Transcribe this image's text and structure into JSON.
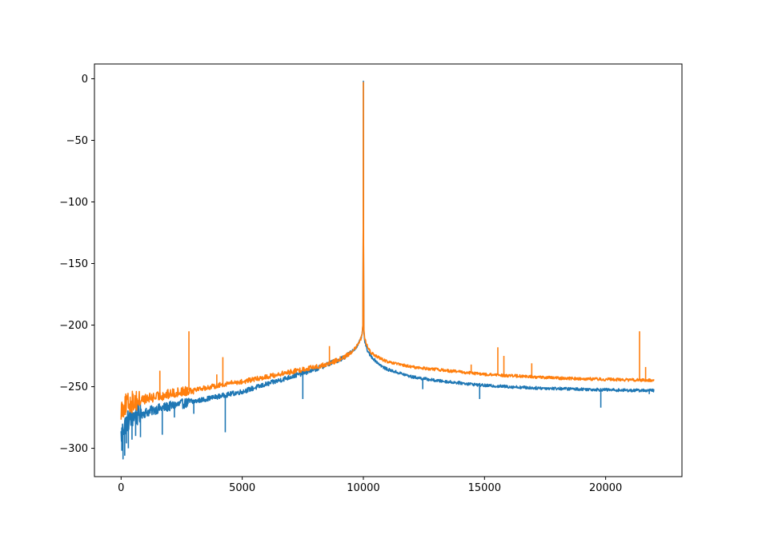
{
  "chart_data": {
    "type": "line",
    "title": "",
    "xlabel": "",
    "ylabel": "",
    "xlim": [
      -1100,
      23150
    ],
    "ylim": [
      -323,
      12
    ],
    "x_ticks": [
      0,
      5000,
      10000,
      15000,
      20000
    ],
    "x_tick_labels": [
      "0",
      "5000",
      "10000",
      "15000",
      "20000"
    ],
    "y_ticks": [
      0,
      -50,
      -100,
      -150,
      -200,
      -250,
      -300
    ],
    "y_tick_labels": [
      "0",
      "−50",
      "−100",
      "−150",
      "−200",
      "−250",
      "−300"
    ],
    "grid": false,
    "legend": "none",
    "series": [
      {
        "color": "#1f77b4",
        "x": [
          0,
          100,
          250,
          500,
          1000,
          1500,
          2000,
          2500,
          3000,
          3500,
          4000,
          4500,
          5000,
          5500,
          6000,
          6500,
          7000,
          7500,
          8000,
          8500,
          9000,
          9300,
          9500,
          9700,
          9800,
          9900,
          9950,
          9980,
          9995,
          10000,
          10005,
          10020,
          10050,
          10100,
          10200,
          10300,
          10500,
          10800,
          11000,
          11500,
          12000,
          13000,
          14000,
          15000,
          16000,
          17000,
          18000,
          19000,
          20000,
          21000,
          22000
        ],
        "y": [
          -290,
          -283,
          -278,
          -274,
          -271,
          -268,
          -266,
          -264,
          -262,
          -260,
          -258,
          -256,
          -254,
          -251,
          -248,
          -245,
          -242,
          -239,
          -236,
          -232,
          -228,
          -225,
          -222,
          -218,
          -215,
          -211,
          -207,
          -200,
          -120,
          -2,
          -120,
          -205,
          -212,
          -217,
          -222,
          -225,
          -229,
          -234,
          -236,
          -239,
          -242,
          -245,
          -247,
          -249,
          -250,
          -251,
          -251.5,
          -252,
          -252.5,
          -253,
          -253
        ],
        "spikes": [
          {
            "x": 30,
            "y": -302
          },
          {
            "x": 80,
            "y": -309
          },
          {
            "x": 150,
            "y": -306
          },
          {
            "x": 220,
            "y": -296
          },
          {
            "x": 300,
            "y": -300
          },
          {
            "x": 450,
            "y": -293
          },
          {
            "x": 600,
            "y": -290
          },
          {
            "x": 800,
            "y": -291
          },
          {
            "x": 1700,
            "y": -289
          },
          {
            "x": 2200,
            "y": -275
          },
          {
            "x": 3000,
            "y": -272
          },
          {
            "x": 4300,
            "y": -287
          },
          {
            "x": 7500,
            "y": -260
          },
          {
            "x": 12450,
            "y": -252
          },
          {
            "x": 14800,
            "y": -260
          },
          {
            "x": 19800,
            "y": -267
          },
          {
            "x": 21800,
            "y": -256
          }
        ]
      },
      {
        "color": "#ff7f0e",
        "x": [
          0,
          100,
          250,
          500,
          1000,
          1500,
          2000,
          2500,
          3000,
          3500,
          4000,
          4500,
          5000,
          5500,
          6000,
          6500,
          7000,
          7500,
          8000,
          8500,
          9000,
          9300,
          9500,
          9700,
          9800,
          9900,
          9950,
          9980,
          9995,
          10000,
          10005,
          10020,
          10050,
          10100,
          10200,
          10300,
          10500,
          10800,
          11000,
          11500,
          12000,
          13000,
          14000,
          15000,
          16000,
          17000,
          18000,
          19000,
          20000,
          21000,
          22000
        ],
        "y": [
          -268,
          -266,
          -264,
          -262,
          -260,
          -258,
          -256,
          -254,
          -252,
          -251,
          -249,
          -247,
          -246,
          -244,
          -242,
          -240,
          -238,
          -236,
          -234,
          -232,
          -228,
          -225,
          -222,
          -218,
          -215,
          -211,
          -207,
          -200,
          -120,
          -3,
          -120,
          -203,
          -210,
          -214,
          -219,
          -222,
          -225,
          -228,
          -230,
          -232,
          -234,
          -236,
          -238,
          -240,
          -241,
          -242,
          -243,
          -243.5,
          -244,
          -244.5,
          -245
        ],
        "spikes": [
          {
            "x": 1600,
            "y": -237
          },
          {
            "x": 2800,
            "y": -205
          },
          {
            "x": 3950,
            "y": -240
          },
          {
            "x": 4200,
            "y": -226
          },
          {
            "x": 8600,
            "y": -217
          },
          {
            "x": 14450,
            "y": -232
          },
          {
            "x": 15550,
            "y": -218
          },
          {
            "x": 15800,
            "y": -225
          },
          {
            "x": 16950,
            "y": -231
          },
          {
            "x": 21400,
            "y": -205
          },
          {
            "x": 21650,
            "y": -234
          }
        ]
      }
    ]
  }
}
